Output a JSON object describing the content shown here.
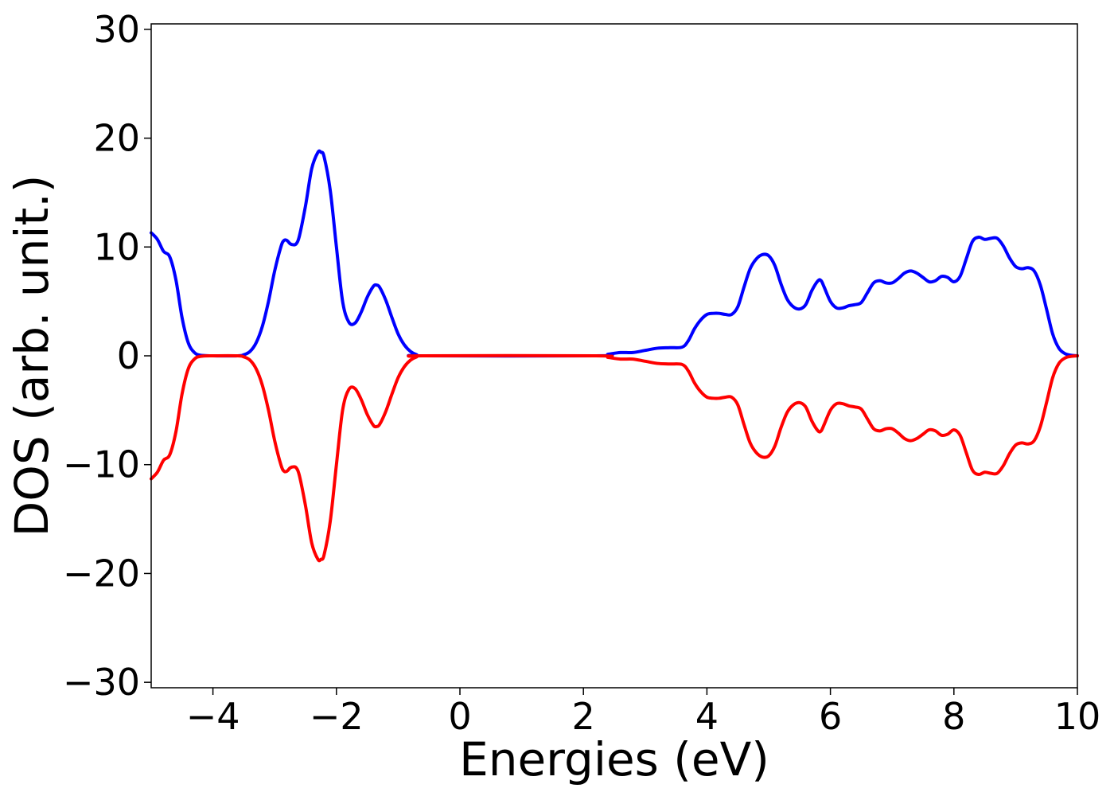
{
  "chart_data": {
    "type": "line",
    "title": "",
    "xlabel": "Energies (eV)",
    "ylabel": "DOS (arb. unit.)",
    "xlim": [
      -5,
      10
    ],
    "ylim": [
      -30.5,
      30.5
    ],
    "xticks": [
      -4,
      -2,
      0,
      2,
      4,
      6,
      8,
      10
    ],
    "yticks": [
      -30,
      -20,
      -10,
      0,
      10,
      20,
      30
    ],
    "xtick_labels": [
      "−4",
      "−2",
      "0",
      "2",
      "4",
      "6",
      "8",
      "10"
    ],
    "ytick_labels": [
      "−30",
      "−20",
      "−10",
      "0",
      "10",
      "20",
      "30"
    ],
    "grid": false,
    "legend": "none",
    "series": [
      {
        "color": "#0000ff",
        "points": [
          [
            -5.0,
            11.3
          ],
          [
            -4.9,
            10.7
          ],
          [
            -4.8,
            9.6
          ],
          [
            -4.7,
            9.1
          ],
          [
            -4.6,
            7.0
          ],
          [
            -4.5,
            3.5
          ],
          [
            -4.4,
            1.2
          ],
          [
            -4.3,
            0.3
          ],
          [
            -4.2,
            0.05
          ],
          [
            -4.0,
            0.0
          ],
          [
            -3.6,
            0.0
          ],
          [
            -3.5,
            0.1
          ],
          [
            -3.4,
            0.4
          ],
          [
            -3.3,
            1.2
          ],
          [
            -3.2,
            2.7
          ],
          [
            -3.1,
            5.0
          ],
          [
            -3.0,
            7.8
          ],
          [
            -2.9,
            10.0
          ],
          [
            -2.85,
            10.6
          ],
          [
            -2.8,
            10.6
          ],
          [
            -2.75,
            10.3
          ],
          [
            -2.7,
            10.2
          ],
          [
            -2.65,
            10.3
          ],
          [
            -2.6,
            11.0
          ],
          [
            -2.5,
            13.8
          ],
          [
            -2.4,
            17.2
          ],
          [
            -2.3,
            18.7
          ],
          [
            -2.25,
            18.7
          ],
          [
            -2.2,
            18.3
          ],
          [
            -2.1,
            15.2
          ],
          [
            -2.0,
            10.0
          ],
          [
            -1.9,
            5.0
          ],
          [
            -1.8,
            3.1
          ],
          [
            -1.7,
            3.0
          ],
          [
            -1.6,
            4.0
          ],
          [
            -1.5,
            5.4
          ],
          [
            -1.4,
            6.4
          ],
          [
            -1.35,
            6.5
          ],
          [
            -1.3,
            6.3
          ],
          [
            -1.2,
            5.1
          ],
          [
            -1.1,
            3.5
          ],
          [
            -1.0,
            2.0
          ],
          [
            -0.9,
            1.0
          ],
          [
            -0.8,
            0.4
          ],
          [
            -0.7,
            0.1
          ],
          [
            -0.6,
            0.0
          ],
          [
            2.2,
            0.0
          ],
          [
            2.4,
            0.15
          ],
          [
            2.6,
            0.3
          ],
          [
            2.8,
            0.3
          ],
          [
            3.0,
            0.5
          ],
          [
            3.2,
            0.7
          ],
          [
            3.4,
            0.75
          ],
          [
            3.6,
            0.8
          ],
          [
            3.7,
            1.4
          ],
          [
            3.8,
            2.5
          ],
          [
            3.9,
            3.3
          ],
          [
            4.0,
            3.8
          ],
          [
            4.1,
            3.9
          ],
          [
            4.2,
            3.9
          ],
          [
            4.3,
            3.8
          ],
          [
            4.4,
            3.8
          ],
          [
            4.5,
            4.5
          ],
          [
            4.6,
            6.3
          ],
          [
            4.7,
            8.0
          ],
          [
            4.8,
            8.9
          ],
          [
            4.9,
            9.3
          ],
          [
            5.0,
            9.2
          ],
          [
            5.1,
            8.3
          ],
          [
            5.2,
            6.6
          ],
          [
            5.3,
            5.2
          ],
          [
            5.4,
            4.5
          ],
          [
            5.5,
            4.3
          ],
          [
            5.6,
            4.7
          ],
          [
            5.7,
            6.0
          ],
          [
            5.8,
            6.9
          ],
          [
            5.85,
            6.9
          ],
          [
            5.9,
            6.3
          ],
          [
            6.0,
            5.0
          ],
          [
            6.1,
            4.4
          ],
          [
            6.2,
            4.4
          ],
          [
            6.3,
            4.6
          ],
          [
            6.4,
            4.7
          ],
          [
            6.5,
            4.9
          ],
          [
            6.6,
            5.8
          ],
          [
            6.7,
            6.7
          ],
          [
            6.8,
            6.9
          ],
          [
            6.9,
            6.7
          ],
          [
            7.0,
            6.7
          ],
          [
            7.1,
            7.1
          ],
          [
            7.2,
            7.6
          ],
          [
            7.3,
            7.8
          ],
          [
            7.4,
            7.6
          ],
          [
            7.5,
            7.2
          ],
          [
            7.6,
            6.8
          ],
          [
            7.7,
            6.9
          ],
          [
            7.8,
            7.3
          ],
          [
            7.9,
            7.2
          ],
          [
            8.0,
            6.8
          ],
          [
            8.1,
            7.3
          ],
          [
            8.2,
            8.9
          ],
          [
            8.3,
            10.5
          ],
          [
            8.4,
            10.9
          ],
          [
            8.5,
            10.7
          ],
          [
            8.6,
            10.8
          ],
          [
            8.7,
            10.8
          ],
          [
            8.8,
            10.1
          ],
          [
            8.9,
            9.0
          ],
          [
            9.0,
            8.2
          ],
          [
            9.1,
            8.0
          ],
          [
            9.2,
            8.1
          ],
          [
            9.3,
            7.8
          ],
          [
            9.4,
            6.5
          ],
          [
            9.5,
            4.3
          ],
          [
            9.6,
            2.0
          ],
          [
            9.7,
            0.7
          ],
          [
            9.8,
            0.2
          ],
          [
            9.9,
            0.05
          ],
          [
            10.0,
            0.0
          ]
        ]
      },
      {
        "color": "#ff0000",
        "points": [
          [
            -5.0,
            -11.3
          ],
          [
            -4.9,
            -10.7
          ],
          [
            -4.8,
            -9.6
          ],
          [
            -4.7,
            -9.1
          ],
          [
            -4.6,
            -7.0
          ],
          [
            -4.5,
            -3.5
          ],
          [
            -4.4,
            -1.2
          ],
          [
            -4.3,
            -0.3
          ],
          [
            -4.2,
            -0.05
          ],
          [
            -4.0,
            0.0
          ],
          [
            -3.6,
            0.0
          ],
          [
            -3.5,
            -0.1
          ],
          [
            -3.4,
            -0.4
          ],
          [
            -3.3,
            -1.2
          ],
          [
            -3.2,
            -2.7
          ],
          [
            -3.1,
            -5.0
          ],
          [
            -3.0,
            -7.8
          ],
          [
            -2.9,
            -10.0
          ],
          [
            -2.85,
            -10.6
          ],
          [
            -2.8,
            -10.6
          ],
          [
            -2.75,
            -10.3
          ],
          [
            -2.7,
            -10.2
          ],
          [
            -2.65,
            -10.3
          ],
          [
            -2.6,
            -11.0
          ],
          [
            -2.5,
            -13.8
          ],
          [
            -2.4,
            -17.2
          ],
          [
            -2.3,
            -18.7
          ],
          [
            -2.25,
            -18.7
          ],
          [
            -2.2,
            -18.3
          ],
          [
            -2.1,
            -15.2
          ],
          [
            -2.0,
            -10.0
          ],
          [
            -1.9,
            -5.0
          ],
          [
            -1.8,
            -3.1
          ],
          [
            -1.7,
            -3.0
          ],
          [
            -1.6,
            -4.0
          ],
          [
            -1.5,
            -5.4
          ],
          [
            -1.4,
            -6.4
          ],
          [
            -1.35,
            -6.5
          ],
          [
            -1.3,
            -6.3
          ],
          [
            -1.2,
            -5.1
          ],
          [
            -1.1,
            -3.5
          ],
          [
            -1.0,
            -2.0
          ],
          [
            -0.9,
            -1.0
          ],
          [
            -0.8,
            -0.4
          ],
          [
            -0.7,
            -0.1
          ],
          [
            -0.6,
            0.0
          ],
          [
            2.2,
            0.0
          ],
          [
            2.4,
            -0.15
          ],
          [
            2.6,
            -0.3
          ],
          [
            2.8,
            -0.3
          ],
          [
            3.0,
            -0.5
          ],
          [
            3.2,
            -0.7
          ],
          [
            3.4,
            -0.75
          ],
          [
            3.6,
            -0.8
          ],
          [
            3.7,
            -1.4
          ],
          [
            3.8,
            -2.5
          ],
          [
            3.9,
            -3.3
          ],
          [
            4.0,
            -3.8
          ],
          [
            4.1,
            -3.9
          ],
          [
            4.2,
            -3.9
          ],
          [
            4.3,
            -3.8
          ],
          [
            4.4,
            -3.8
          ],
          [
            4.5,
            -4.5
          ],
          [
            4.6,
            -6.3
          ],
          [
            4.7,
            -8.0
          ],
          [
            4.8,
            -8.9
          ],
          [
            4.9,
            -9.3
          ],
          [
            5.0,
            -9.2
          ],
          [
            5.1,
            -8.3
          ],
          [
            5.2,
            -6.6
          ],
          [
            5.3,
            -5.2
          ],
          [
            5.4,
            -4.5
          ],
          [
            5.5,
            -4.3
          ],
          [
            5.6,
            -4.7
          ],
          [
            5.7,
            -6.0
          ],
          [
            5.8,
            -6.9
          ],
          [
            5.85,
            -6.9
          ],
          [
            5.9,
            -6.3
          ],
          [
            6.0,
            -5.0
          ],
          [
            6.1,
            -4.4
          ],
          [
            6.2,
            -4.4
          ],
          [
            6.3,
            -4.6
          ],
          [
            6.4,
            -4.7
          ],
          [
            6.5,
            -4.9
          ],
          [
            6.6,
            -5.8
          ],
          [
            6.7,
            -6.7
          ],
          [
            6.8,
            -6.9
          ],
          [
            6.9,
            -6.7
          ],
          [
            7.0,
            -6.7
          ],
          [
            7.1,
            -7.1
          ],
          [
            7.2,
            -7.6
          ],
          [
            7.3,
            -7.8
          ],
          [
            7.4,
            -7.6
          ],
          [
            7.5,
            -7.2
          ],
          [
            7.6,
            -6.8
          ],
          [
            7.7,
            -6.9
          ],
          [
            7.8,
            -7.3
          ],
          [
            7.9,
            -7.2
          ],
          [
            8.0,
            -6.8
          ],
          [
            8.1,
            -7.3
          ],
          [
            8.2,
            -8.9
          ],
          [
            8.3,
            -10.5
          ],
          [
            8.4,
            -10.9
          ],
          [
            8.5,
            -10.7
          ],
          [
            8.6,
            -10.8
          ],
          [
            8.7,
            -10.8
          ],
          [
            8.8,
            -10.1
          ],
          [
            8.9,
            -9.0
          ],
          [
            9.0,
            -8.2
          ],
          [
            9.1,
            -8.0
          ],
          [
            9.2,
            -8.1
          ],
          [
            9.3,
            -7.8
          ],
          [
            9.4,
            -6.5
          ],
          [
            9.5,
            -4.3
          ],
          [
            9.6,
            -2.0
          ],
          [
            9.7,
            -0.7
          ],
          [
            9.8,
            -0.2
          ],
          [
            9.9,
            -0.05
          ],
          [
            10.0,
            0.0
          ]
        ]
      }
    ]
  }
}
